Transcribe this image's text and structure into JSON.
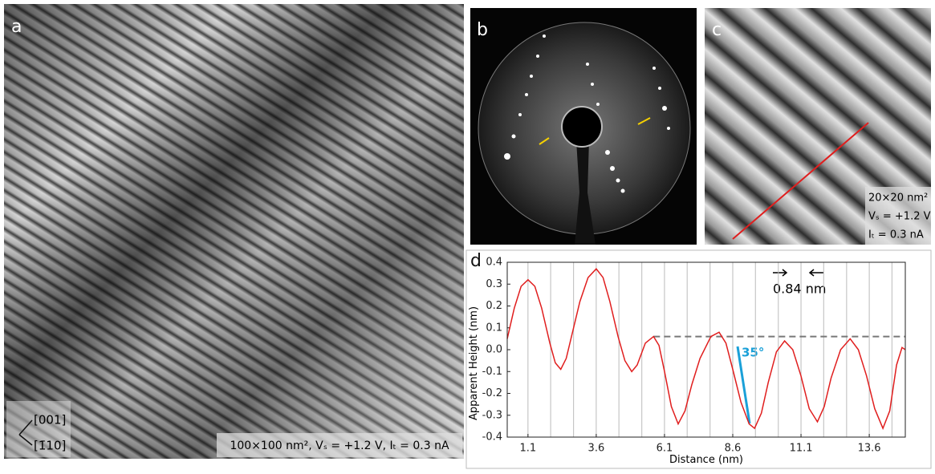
{
  "panels": {
    "a": {
      "label": "a",
      "directions": [
        "[001]",
        "[1̄10]"
      ],
      "caption": "100×100 nm², Vₛ = +1.2 V, Iₜ = 0.3 nA"
    },
    "b": {
      "label": "b"
    },
    "c": {
      "label": "c",
      "caption": [
        "20×20 nm²",
        "Vₛ = +1.2 V",
        "Iₜ = 0.3 nA"
      ]
    },
    "d": {
      "label": "d"
    }
  },
  "chart_data": {
    "type": "line",
    "x_label": "Distance (nm)",
    "y_label": "Apparent Height (nm)",
    "annotations": [
      "0.84 nm",
      "35°"
    ],
    "x": [
      0.34,
      0.6,
      0.85,
      1.1,
      1.35,
      1.6,
      1.9,
      2.1,
      2.3,
      2.5,
      2.75,
      3.0,
      3.3,
      3.6,
      3.85,
      4.1,
      4.4,
      4.65,
      4.9,
      5.1,
      5.4,
      5.7,
      5.9,
      6.1,
      6.35,
      6.6,
      6.85,
      7.1,
      7.4,
      7.8,
      8.1,
      8.35,
      8.6,
      8.9,
      9.2,
      9.4,
      9.65,
      9.9,
      10.2,
      10.5,
      10.8,
      11.1,
      11.4,
      11.7,
      11.95,
      12.2,
      12.55,
      12.9,
      13.2,
      13.5,
      13.8,
      14.1,
      14.35,
      14.6,
      14.8,
      14.92
    ],
    "values": [
      0.05,
      0.19,
      0.29,
      0.32,
      0.29,
      0.19,
      0.03,
      -0.06,
      -0.09,
      -0.04,
      0.09,
      0.22,
      0.33,
      0.37,
      0.33,
      0.22,
      0.06,
      -0.05,
      -0.1,
      -0.07,
      0.03,
      0.06,
      0.02,
      -0.1,
      -0.26,
      -0.34,
      -0.28,
      -0.16,
      -0.04,
      0.06,
      0.08,
      0.03,
      -0.09,
      -0.24,
      -0.34,
      -0.36,
      -0.29,
      -0.15,
      -0.01,
      0.04,
      0.0,
      -0.12,
      -0.27,
      -0.33,
      -0.26,
      -0.13,
      0.0,
      0.05,
      0.0,
      -0.12,
      -0.27,
      -0.36,
      -0.28,
      -0.07,
      0.01,
      0.0
    ],
    "color": "#e01e1e",
    "xlim": [
      0.34,
      14.92
    ],
    "ylim": [
      -0.4,
      0.4
    ],
    "xticks": [
      1.1,
      3.6,
      6.1,
      8.6,
      11.1,
      13.6
    ],
    "yticks": [
      0.4,
      0.3,
      0.2,
      0.1,
      {
        "value": 0,
        "label": "0.0"
      },
      -0.1,
      -0.2,
      -0.3,
      -0.4
    ],
    "x_grid": [
      1.1,
      1.93,
      2.77,
      3.6,
      4.43,
      5.27,
      6.1,
      6.93,
      7.77,
      8.6,
      9.43,
      10.27,
      11.1,
      11.93,
      12.77,
      13.6,
      14.43
    ],
    "reference_line": {
      "y": 0.06,
      "x_from": 5.7
    }
  }
}
